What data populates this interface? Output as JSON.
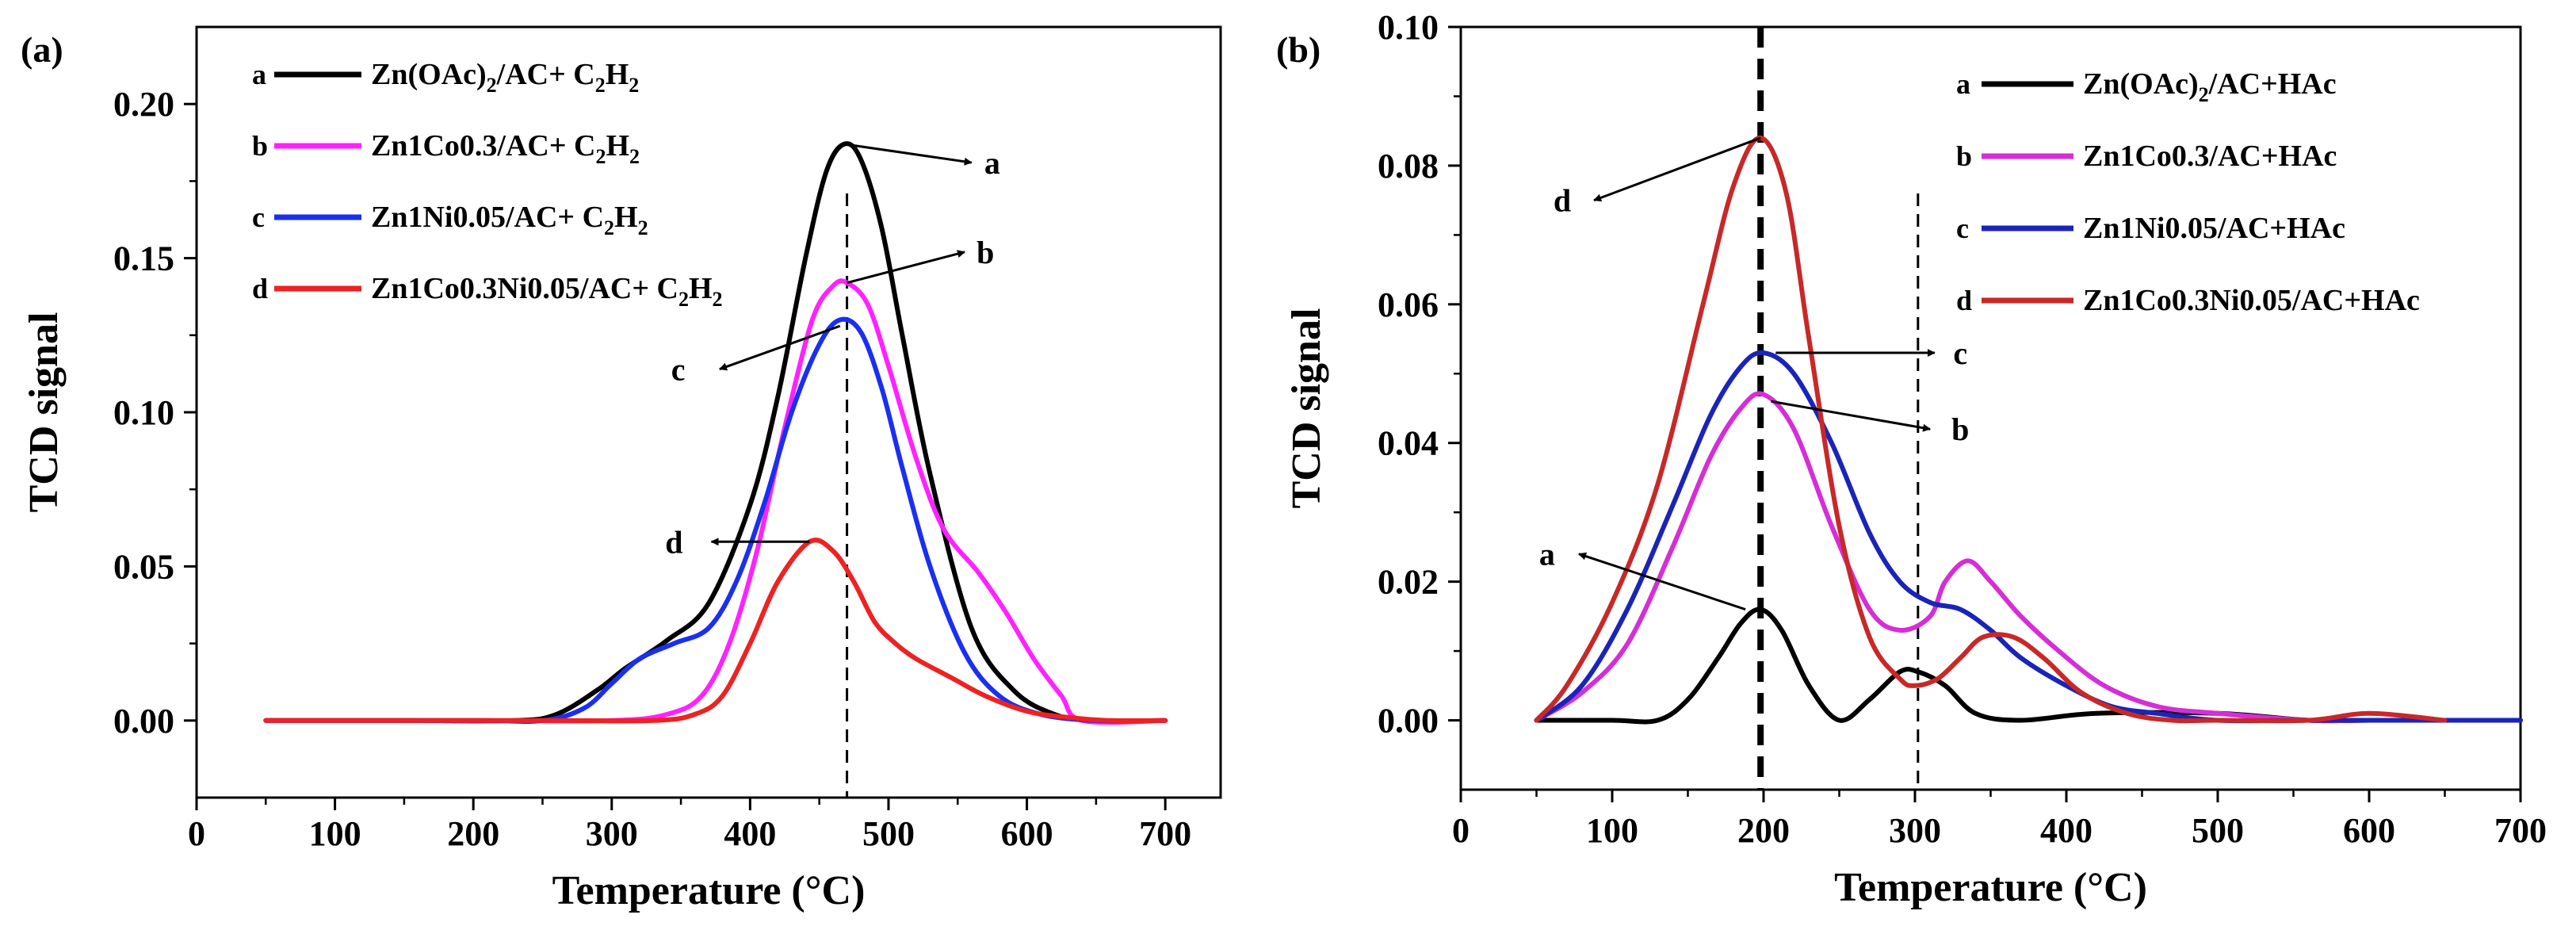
{
  "chart_data": [
    {
      "panel_label": "(a)",
      "type": "line",
      "xlabel": "Temperature (°C)",
      "ylabel": "TCD  signal",
      "xlim": [
        0,
        740
      ],
      "ylim": [
        -0.025,
        0.225
      ],
      "xticks": [
        0,
        100,
        200,
        300,
        400,
        500,
        600,
        700
      ],
      "yticks": [
        0.0,
        0.05,
        0.1,
        0.15,
        0.2
      ],
      "ytick_labels": [
        "0.00",
        "0.05",
        "0.10",
        "0.15",
        "0.20"
      ],
      "vlines": [
        {
          "x": 470,
          "style": "dashed",
          "weight": "normal"
        }
      ],
      "legend": [
        {
          "letter": "a",
          "main": "Zn(OAc)",
          "sub": "2",
          "rest": "/AC+ C",
          "sub2": "2",
          "rest2": "H",
          "sub3": "2",
          "color": "#000000"
        },
        {
          "letter": "b",
          "main": "Zn1Co0.3/AC+ C",
          "sub": "2",
          "rest": "H",
          "sub2": "2",
          "rest2": "",
          "sub3": "",
          "color": "#ff22ff"
        },
        {
          "letter": "c",
          "main": "Zn1Ni0.05/AC+ C",
          "sub": "2",
          "rest": "H",
          "sub2": "2",
          "rest2": "",
          "sub3": "",
          "color": "#1a2ff0"
        },
        {
          "letter": "d",
          "main": "Zn1Co0.3Ni0.05/AC+ C",
          "sub": "2",
          "rest": "H",
          "sub2": "2",
          "rest2": "",
          "sub3": "",
          "color": "#ee2222"
        }
      ],
      "annotations": [
        {
          "label": "a",
          "from": [
            468,
            0.187
          ],
          "to": [
            560,
            0.181
          ],
          "text_at": [
            575,
            0.181
          ]
        },
        {
          "label": "b",
          "from": [
            470,
            0.142
          ],
          "to": [
            555,
            0.152
          ],
          "text_at": [
            570,
            0.152
          ]
        },
        {
          "label": "c",
          "from": [
            465,
            0.128
          ],
          "to": [
            378,
            0.114
          ],
          "text_at": [
            348,
            0.114
          ]
        },
        {
          "label": "d",
          "from": [
            443,
            0.058
          ],
          "to": [
            372,
            0.058
          ],
          "text_at": [
            345,
            0.058
          ]
        }
      ],
      "series": [
        {
          "name": "a",
          "color": "#000000",
          "x": [
            50,
            150,
            230,
            260,
            290,
            310,
            340,
            370,
            400,
            420,
            440,
            455,
            468,
            480,
            495,
            510,
            530,
            560,
            590,
            620,
            650,
            700
          ],
          "y": [
            0.0,
            0.0,
            0.0,
            0.002,
            0.01,
            0.017,
            0.026,
            0.038,
            0.07,
            0.105,
            0.15,
            0.178,
            0.187,
            0.182,
            0.16,
            0.125,
            0.08,
            0.03,
            0.01,
            0.002,
            0.0,
            0.0
          ]
        },
        {
          "name": "b",
          "color": "#ff22ff",
          "x": [
            50,
            200,
            300,
            340,
            365,
            385,
            405,
            425,
            445,
            460,
            470,
            485,
            500,
            520,
            540,
            565,
            585,
            605,
            625,
            640,
            700
          ],
          "y": [
            0.0,
            0.0,
            0.0,
            0.002,
            0.008,
            0.025,
            0.055,
            0.095,
            0.13,
            0.141,
            0.142,
            0.135,
            0.115,
            0.085,
            0.062,
            0.048,
            0.035,
            0.02,
            0.008,
            0.0,
            0.0
          ]
        },
        {
          "name": "c",
          "color": "#1a2ff0",
          "x": [
            50,
            200,
            250,
            280,
            300,
            320,
            345,
            370,
            390,
            410,
            430,
            450,
            465,
            480,
            495,
            510,
            530,
            555,
            580,
            610,
            650,
            700
          ],
          "y": [
            0.0,
            0.0,
            0.0,
            0.004,
            0.012,
            0.02,
            0.025,
            0.03,
            0.045,
            0.07,
            0.1,
            0.122,
            0.13,
            0.126,
            0.108,
            0.082,
            0.05,
            0.022,
            0.008,
            0.002,
            0.0,
            0.0
          ]
        },
        {
          "name": "d",
          "color": "#ee2222",
          "x": [
            50,
            250,
            330,
            360,
            380,
            400,
            420,
            443,
            460,
            475,
            490,
            505,
            520,
            545,
            570,
            600,
            630,
            660,
            700
          ],
          "y": [
            0.0,
            0.0,
            0.0,
            0.002,
            0.008,
            0.025,
            0.045,
            0.058,
            0.055,
            0.045,
            0.032,
            0.025,
            0.02,
            0.014,
            0.008,
            0.003,
            0.001,
            0.0,
            0.0
          ]
        }
      ]
    },
    {
      "panel_label": "(b)",
      "type": "line",
      "xlabel": "Temperature (°C)",
      "ylabel": "TCD  signal",
      "xlim": [
        0,
        700
      ],
      "ylim": [
        -0.01,
        0.1
      ],
      "xticks": [
        0,
        100,
        200,
        300,
        400,
        500,
        600,
        700
      ],
      "yticks": [
        0.0,
        0.02,
        0.04,
        0.06,
        0.08,
        0.1
      ],
      "ytick_labels": [
        "0.00",
        "0.02",
        "0.04",
        "0.06",
        "0.08",
        "0.10"
      ],
      "vlines": [
        {
          "x": 198,
          "style": "dashed",
          "weight": "bold"
        },
        {
          "x": 302,
          "style": "dashed",
          "weight": "normal"
        }
      ],
      "legend": [
        {
          "letter": "a",
          "main": "Zn(OAc)",
          "sub": "2",
          "rest": "/AC+HAc",
          "sub2": "",
          "rest2": "",
          "sub3": "",
          "color": "#000000"
        },
        {
          "letter": "b",
          "main": "Zn1Co0.3/AC+HAc",
          "sub": "",
          "rest": "",
          "sub2": "",
          "rest2": "",
          "sub3": "",
          "color": "#d62ed6"
        },
        {
          "letter": "c",
          "main": "Zn1Ni0.05/AC+HAc",
          "sub": "",
          "rest": "",
          "sub2": "",
          "rest2": "",
          "sub3": "",
          "color": "#1a24b8"
        },
        {
          "letter": "d",
          "main": "Zn1Co0.3Ni0.05/AC+HAc",
          "sub": "",
          "rest": "",
          "sub2": "",
          "rest2": "",
          "sub3": "",
          "color": "#c82828"
        }
      ],
      "annotations": [
        {
          "label": "d",
          "from": [
            198,
            0.084
          ],
          "to": [
            88,
            0.075
          ],
          "text_at": [
            67,
            0.075
          ]
        },
        {
          "label": "c",
          "from": [
            208,
            0.053
          ],
          "to": [
            313,
            0.053
          ],
          "text_at": [
            330,
            0.053
          ]
        },
        {
          "label": "b",
          "from": [
            205,
            0.046
          ],
          "to": [
            310,
            0.042
          ],
          "text_at": [
            330,
            0.042
          ]
        },
        {
          "label": "a",
          "from": [
            188,
            0.016
          ],
          "to": [
            78,
            0.024
          ],
          "text_at": [
            57,
            0.024
          ]
        }
      ],
      "series": [
        {
          "name": "a",
          "color": "#000000",
          "x": [
            50,
            100,
            130,
            150,
            170,
            185,
            198,
            212,
            230,
            250,
            270,
            290,
            302,
            320,
            340,
            370,
            420,
            500,
            560,
            600,
            650,
            700
          ],
          "y": [
            0.0,
            0.0,
            0.0,
            0.003,
            0.009,
            0.014,
            0.016,
            0.013,
            0.005,
            0.0,
            0.003,
            0.007,
            0.007,
            0.005,
            0.001,
            0.0,
            0.001,
            0.001,
            0.0,
            0.0,
            0.0,
            0.0
          ]
        },
        {
          "name": "b",
          "color": "#d62ed6",
          "x": [
            50,
            80,
            110,
            140,
            165,
            185,
            200,
            220,
            245,
            270,
            290,
            310,
            320,
            335,
            350,
            370,
            395,
            425,
            460,
            500,
            560,
            600,
            650
          ],
          "y": [
            0.0,
            0.004,
            0.011,
            0.025,
            0.038,
            0.045,
            0.047,
            0.042,
            0.028,
            0.016,
            0.013,
            0.015,
            0.02,
            0.023,
            0.02,
            0.015,
            0.01,
            0.005,
            0.002,
            0.001,
            0.0,
            0.0,
            0.0
          ]
        },
        {
          "name": "c",
          "color": "#1a24b8",
          "x": [
            50,
            80,
            110,
            140,
            165,
            185,
            200,
            220,
            245,
            270,
            290,
            310,
            330,
            350,
            370,
            400,
            430,
            460,
            500,
            560,
            600,
            650,
            700
          ],
          "y": [
            0.0,
            0.005,
            0.016,
            0.031,
            0.044,
            0.051,
            0.053,
            0.05,
            0.04,
            0.027,
            0.02,
            0.017,
            0.016,
            0.013,
            0.009,
            0.005,
            0.002,
            0.001,
            0.0,
            0.0,
            0.0,
            0.0,
            0.0
          ]
        },
        {
          "name": "d",
          "color": "#c82828",
          "x": [
            50,
            70,
            100,
            130,
            160,
            180,
            198,
            215,
            230,
            250,
            270,
            290,
            300,
            315,
            330,
            345,
            365,
            385,
            410,
            440,
            470,
            500,
            560,
            600,
            650
          ],
          "y": [
            0.0,
            0.005,
            0.017,
            0.034,
            0.06,
            0.077,
            0.084,
            0.076,
            0.055,
            0.028,
            0.012,
            0.006,
            0.005,
            0.006,
            0.009,
            0.012,
            0.012,
            0.009,
            0.004,
            0.001,
            0.0,
            0.0,
            0.0,
            0.001,
            0.0
          ]
        }
      ]
    }
  ]
}
